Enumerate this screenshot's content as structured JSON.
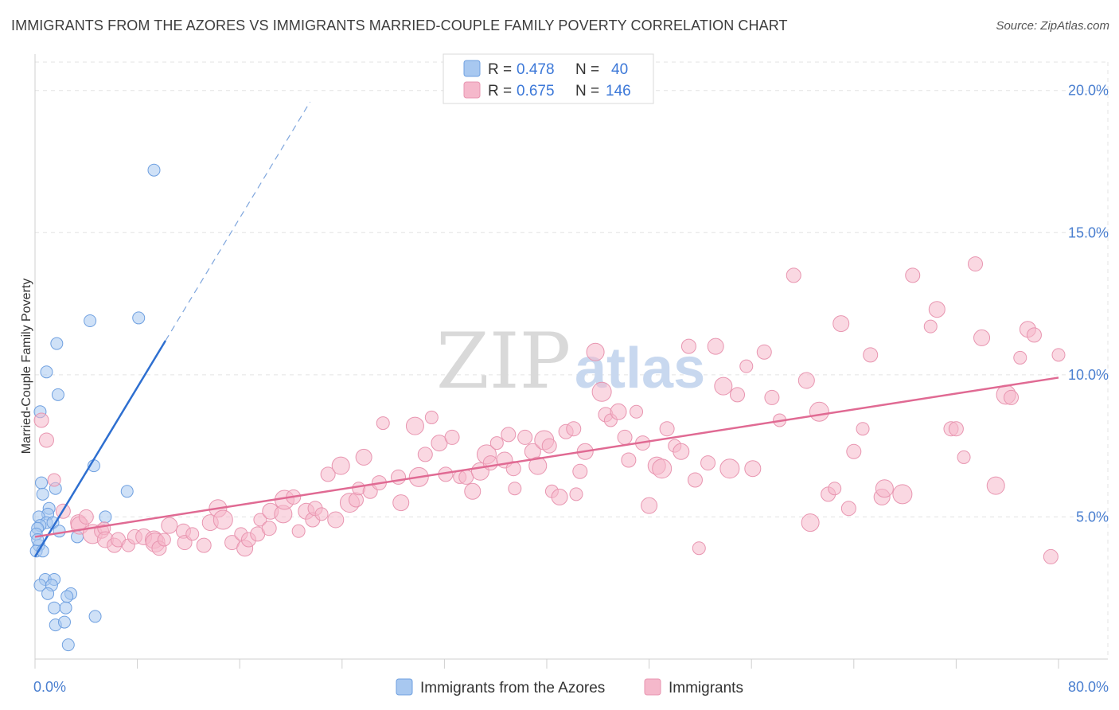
{
  "title": "IMMIGRANTS FROM THE AZORES VS IMMIGRANTS MARRIED-COUPLE FAMILY POVERTY CORRELATION CHART",
  "source": "Source: ZipAtlas.com",
  "watermark": {
    "zip": "ZIP",
    "atlas": "atlas"
  },
  "legend": {
    "rows": [
      {
        "r_label": "R = ",
        "r_value": "0.478",
        "n_label": "N = ",
        "n_value": "40",
        "color": "#a8c8f0"
      },
      {
        "r_label": "R = ",
        "r_value": "0.675",
        "n_label": "N = ",
        "n_value": "146",
        "color": "#f5b8cb"
      }
    ]
  },
  "bottom_legend": [
    {
      "label": "Immigrants from the Azores",
      "color": "#a8c8f0"
    },
    {
      "label": "Immigrants",
      "color": "#f5b8cb"
    }
  ],
  "chart_data": {
    "type": "scatter",
    "title": "IMMIGRANTS FROM THE AZORES VS IMMIGRANTS MARRIED-COUPLE FAMILY POVERTY CORRELATION CHART",
    "xlabel": "",
    "ylabel": "Married-Couple Family Poverty",
    "xlim": [
      0,
      80
    ],
    "ylim": [
      0,
      21
    ],
    "x_tick_labels": [
      "0.0%",
      "80.0%"
    ],
    "y_ticks": [
      5,
      10,
      15,
      20
    ],
    "y_tick_labels": [
      "5.0%",
      "10.0%",
      "15.0%",
      "20.0%"
    ],
    "grid": true,
    "legend_position": "top-center",
    "series": [
      {
        "name": "Immigrants from the Azores",
        "color": "#6fa0e0",
        "fill": "#a8c8f0",
        "r": 0.478,
        "n": 40,
        "trend": {
          "x1": 0.0,
          "y1": 3.6,
          "x2": 10.2,
          "y2": 11.2,
          "dash_to_x": 21.5,
          "dash_to_y": 19.6,
          "color": "#2e6fd0"
        },
        "points": [
          [
            9.3,
            17.2
          ],
          [
            4.3,
            11.9
          ],
          [
            8.1,
            12.0
          ],
          [
            1.7,
            11.1
          ],
          [
            0.9,
            10.1
          ],
          [
            1.8,
            9.3
          ],
          [
            0.4,
            8.7
          ],
          [
            4.6,
            6.8
          ],
          [
            1.6,
            6.0
          ],
          [
            0.5,
            6.2
          ],
          [
            7.2,
            5.9
          ],
          [
            0.6,
            5.8
          ],
          [
            1.1,
            5.3
          ],
          [
            1.0,
            5.1
          ],
          [
            0.3,
            5.0
          ],
          [
            5.5,
            5.0
          ],
          [
            0.9,
            4.8
          ],
          [
            0.4,
            4.7
          ],
          [
            1.4,
            4.8
          ],
          [
            0.2,
            4.6
          ],
          [
            1.9,
            4.5
          ],
          [
            0.1,
            4.4
          ],
          [
            3.3,
            4.3
          ],
          [
            0.3,
            4.0
          ],
          [
            0.1,
            3.8
          ],
          [
            0.6,
            3.8
          ],
          [
            0.8,
            2.8
          ],
          [
            1.5,
            2.8
          ],
          [
            0.4,
            2.6
          ],
          [
            1.3,
            2.6
          ],
          [
            1.0,
            2.3
          ],
          [
            2.8,
            2.3
          ],
          [
            2.5,
            2.2
          ],
          [
            1.5,
            1.8
          ],
          [
            2.4,
            1.8
          ],
          [
            4.7,
            1.5
          ],
          [
            1.6,
            1.2
          ],
          [
            2.3,
            1.3
          ],
          [
            2.6,
            0.5
          ],
          [
            0.2,
            4.2
          ]
        ]
      },
      {
        "name": "Immigrants",
        "color": "#e895b0",
        "fill": "#f5b8cb",
        "r": 0.675,
        "n": 146,
        "trend": {
          "x1": 0.0,
          "y1": 4.3,
          "x2": 80.0,
          "y2": 9.9,
          "color": "#e06a93"
        },
        "points": [
          [
            0.5,
            8.4
          ],
          [
            0.9,
            7.7
          ],
          [
            1.5,
            6.3
          ],
          [
            2.2,
            5.2
          ],
          [
            3.4,
            4.8
          ],
          [
            3.5,
            4.7
          ],
          [
            4.5,
            4.4
          ],
          [
            5.2,
            4.5
          ],
          [
            5.4,
            4.6
          ],
          [
            5.5,
            4.2
          ],
          [
            6.2,
            4.0
          ],
          [
            6.5,
            4.2
          ],
          [
            7.3,
            4.0
          ],
          [
            7.8,
            4.3
          ],
          [
            8.5,
            4.3
          ],
          [
            9.3,
            4.2
          ],
          [
            9.4,
            4.1
          ],
          [
            9.7,
            3.9
          ],
          [
            10.1,
            4.2
          ],
          [
            10.5,
            4.7
          ],
          [
            11.6,
            4.5
          ],
          [
            11.7,
            4.1
          ],
          [
            12.3,
            4.4
          ],
          [
            13.2,
            4.0
          ],
          [
            13.7,
            4.8
          ],
          [
            14.3,
            5.3
          ],
          [
            14.7,
            4.9
          ],
          [
            15.4,
            4.1
          ],
          [
            16.1,
            4.4
          ],
          [
            16.4,
            3.9
          ],
          [
            16.7,
            4.2
          ],
          [
            17.4,
            4.4
          ],
          [
            17.6,
            4.9
          ],
          [
            18.3,
            4.6
          ],
          [
            18.4,
            5.2
          ],
          [
            19.4,
            5.1
          ],
          [
            19.5,
            5.6
          ],
          [
            20.2,
            5.7
          ],
          [
            20.6,
            4.5
          ],
          [
            21.2,
            5.2
          ],
          [
            21.7,
            4.9
          ],
          [
            21.9,
            5.3
          ],
          [
            22.4,
            5.1
          ],
          [
            22.9,
            6.5
          ],
          [
            23.5,
            4.9
          ],
          [
            23.9,
            6.8
          ],
          [
            24.6,
            5.5
          ],
          [
            25.1,
            5.6
          ],
          [
            25.3,
            6.0
          ],
          [
            25.7,
            7.1
          ],
          [
            26.2,
            5.9
          ],
          [
            26.9,
            6.2
          ],
          [
            27.2,
            8.3
          ],
          [
            28.4,
            6.4
          ],
          [
            28.6,
            5.5
          ],
          [
            29.7,
            8.2
          ],
          [
            30.0,
            6.4
          ],
          [
            30.5,
            7.2
          ],
          [
            31.0,
            8.5
          ],
          [
            31.6,
            7.6
          ],
          [
            32.1,
            6.5
          ],
          [
            32.6,
            7.8
          ],
          [
            33.2,
            6.4
          ],
          [
            33.7,
            6.4
          ],
          [
            34.2,
            5.9
          ],
          [
            34.8,
            6.6
          ],
          [
            35.3,
            7.2
          ],
          [
            35.6,
            6.9
          ],
          [
            36.1,
            7.6
          ],
          [
            36.7,
            7.0
          ],
          [
            37.0,
            7.9
          ],
          [
            37.4,
            6.7
          ],
          [
            37.5,
            6.0
          ],
          [
            38.3,
            7.8
          ],
          [
            38.9,
            7.3
          ],
          [
            39.3,
            6.8
          ],
          [
            39.8,
            7.7
          ],
          [
            40.2,
            7.5
          ],
          [
            40.4,
            5.9
          ],
          [
            41.0,
            5.7
          ],
          [
            41.5,
            8.0
          ],
          [
            42.1,
            8.1
          ],
          [
            42.3,
            5.8
          ],
          [
            42.6,
            6.6
          ],
          [
            43.0,
            7.3
          ],
          [
            43.8,
            10.8
          ],
          [
            44.3,
            9.4
          ],
          [
            44.6,
            8.6
          ],
          [
            45.0,
            8.4
          ],
          [
            45.6,
            8.7
          ],
          [
            46.1,
            7.8
          ],
          [
            46.4,
            7.0
          ],
          [
            47.0,
            8.7
          ],
          [
            47.5,
            7.6
          ],
          [
            48.0,
            5.4
          ],
          [
            48.6,
            6.8
          ],
          [
            49.0,
            6.7
          ],
          [
            49.4,
            8.1
          ],
          [
            50.0,
            7.5
          ],
          [
            50.5,
            7.3
          ],
          [
            51.1,
            11.0
          ],
          [
            51.6,
            6.3
          ],
          [
            51.9,
            3.9
          ],
          [
            52.6,
            6.9
          ],
          [
            53.2,
            11.0
          ],
          [
            53.8,
            9.6
          ],
          [
            54.3,
            6.7
          ],
          [
            54.9,
            9.3
          ],
          [
            55.6,
            10.3
          ],
          [
            56.1,
            6.7
          ],
          [
            57.0,
            10.8
          ],
          [
            57.6,
            9.2
          ],
          [
            58.2,
            8.4
          ],
          [
            59.3,
            13.5
          ],
          [
            60.3,
            9.8
          ],
          [
            60.6,
            4.8
          ],
          [
            61.3,
            8.7
          ],
          [
            62.0,
            5.8
          ],
          [
            62.5,
            6.0
          ],
          [
            63.0,
            11.8
          ],
          [
            63.6,
            5.3
          ],
          [
            64.0,
            7.3
          ],
          [
            64.7,
            8.1
          ],
          [
            65.3,
            10.7
          ],
          [
            66.2,
            5.7
          ],
          [
            66.4,
            6.0
          ],
          [
            67.8,
            5.8
          ],
          [
            68.6,
            13.5
          ],
          [
            70.0,
            11.7
          ],
          [
            70.5,
            12.3
          ],
          [
            71.6,
            8.1
          ],
          [
            72.0,
            8.1
          ],
          [
            72.6,
            7.1
          ],
          [
            73.5,
            13.9
          ],
          [
            74.0,
            11.3
          ],
          [
            75.1,
            6.1
          ],
          [
            75.9,
            9.3
          ],
          [
            76.3,
            9.2
          ],
          [
            77.0,
            10.6
          ],
          [
            77.6,
            11.6
          ],
          [
            78.1,
            11.4
          ],
          [
            79.4,
            3.6
          ],
          [
            80.0,
            10.7
          ],
          [
            4.0,
            5.0
          ]
        ]
      }
    ]
  }
}
